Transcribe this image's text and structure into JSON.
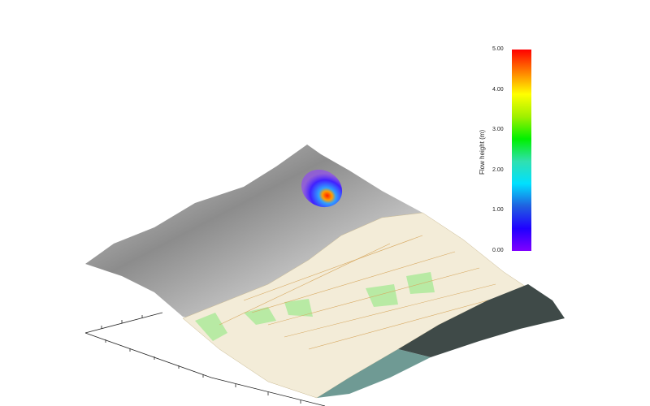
{
  "colorbar": {
    "title": "Flow height (m)",
    "min": 0,
    "max": 5,
    "ticks": [
      "0.00",
      "1.00",
      "2.00",
      "3.00",
      "4.00",
      "5.00"
    ],
    "colors": [
      "#8000ff",
      "#2000ff",
      "#2060e0",
      "#00e0ff",
      "#30e0b0",
      "#00f000",
      "#a0f000",
      "#ffff00",
      "#ff8000",
      "#ff0000"
    ]
  },
  "scene": {
    "terrain_color": "#9a9a9a",
    "map_color": "#f3ecd8",
    "forest_color": "#b8eaa4",
    "aerial_color": "#3f4a48",
    "lake_color": "#6f9a94"
  }
}
